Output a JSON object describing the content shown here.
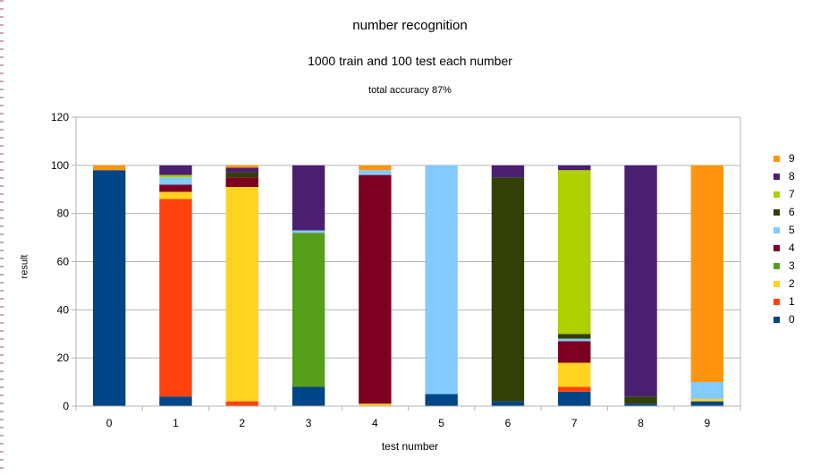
{
  "chart_data": {
    "type": "bar",
    "stacked": true,
    "title": "number recognition",
    "subtitle": "1000 train and 100 test each number",
    "note": "total accuracy 87%",
    "xlabel": "test number",
    "ylabel": "result",
    "ylim": [
      0,
      120
    ],
    "yticks": [
      0,
      20,
      40,
      60,
      80,
      100,
      120
    ],
    "grid": true,
    "legend_position": "right",
    "categories": [
      "0",
      "1",
      "2",
      "3",
      "4",
      "5",
      "6",
      "7",
      "8",
      "9"
    ],
    "series": [
      {
        "name": "0",
        "color": "#004586",
        "values": [
          98,
          4,
          0,
          8,
          0,
          5,
          2,
          6,
          1,
          2
        ]
      },
      {
        "name": "1",
        "color": "#ff420e",
        "values": [
          0,
          82,
          2,
          0,
          0,
          0,
          0,
          2,
          0,
          0
        ]
      },
      {
        "name": "2",
        "color": "#ffd320",
        "values": [
          0,
          3,
          89,
          0,
          1,
          0,
          0,
          10,
          0,
          1
        ]
      },
      {
        "name": "3",
        "color": "#579d1c",
        "values": [
          0,
          0,
          0,
          64,
          0,
          0,
          0,
          0,
          0,
          0
        ]
      },
      {
        "name": "4",
        "color": "#7e0021",
        "values": [
          0,
          3,
          4,
          0,
          95,
          0,
          0,
          9,
          0,
          0
        ]
      },
      {
        "name": "5",
        "color": "#83caff",
        "values": [
          0,
          3,
          0,
          1,
          2,
          95,
          0,
          1,
          0,
          7
        ]
      },
      {
        "name": "6",
        "color": "#314004",
        "values": [
          0,
          0,
          2,
          0,
          0,
          0,
          93,
          2,
          3,
          0
        ]
      },
      {
        "name": "7",
        "color": "#aecf00",
        "values": [
          0,
          1,
          0,
          0,
          0,
          0,
          0,
          68,
          0,
          0
        ]
      },
      {
        "name": "8",
        "color": "#4b1f6f",
        "values": [
          0,
          4,
          2,
          27,
          0,
          0,
          5,
          2,
          96,
          0
        ]
      },
      {
        "name": "9",
        "color": "#ff950e",
        "values": [
          2,
          0,
          1,
          0,
          2,
          0,
          0,
          0,
          0,
          90
        ]
      }
    ]
  }
}
